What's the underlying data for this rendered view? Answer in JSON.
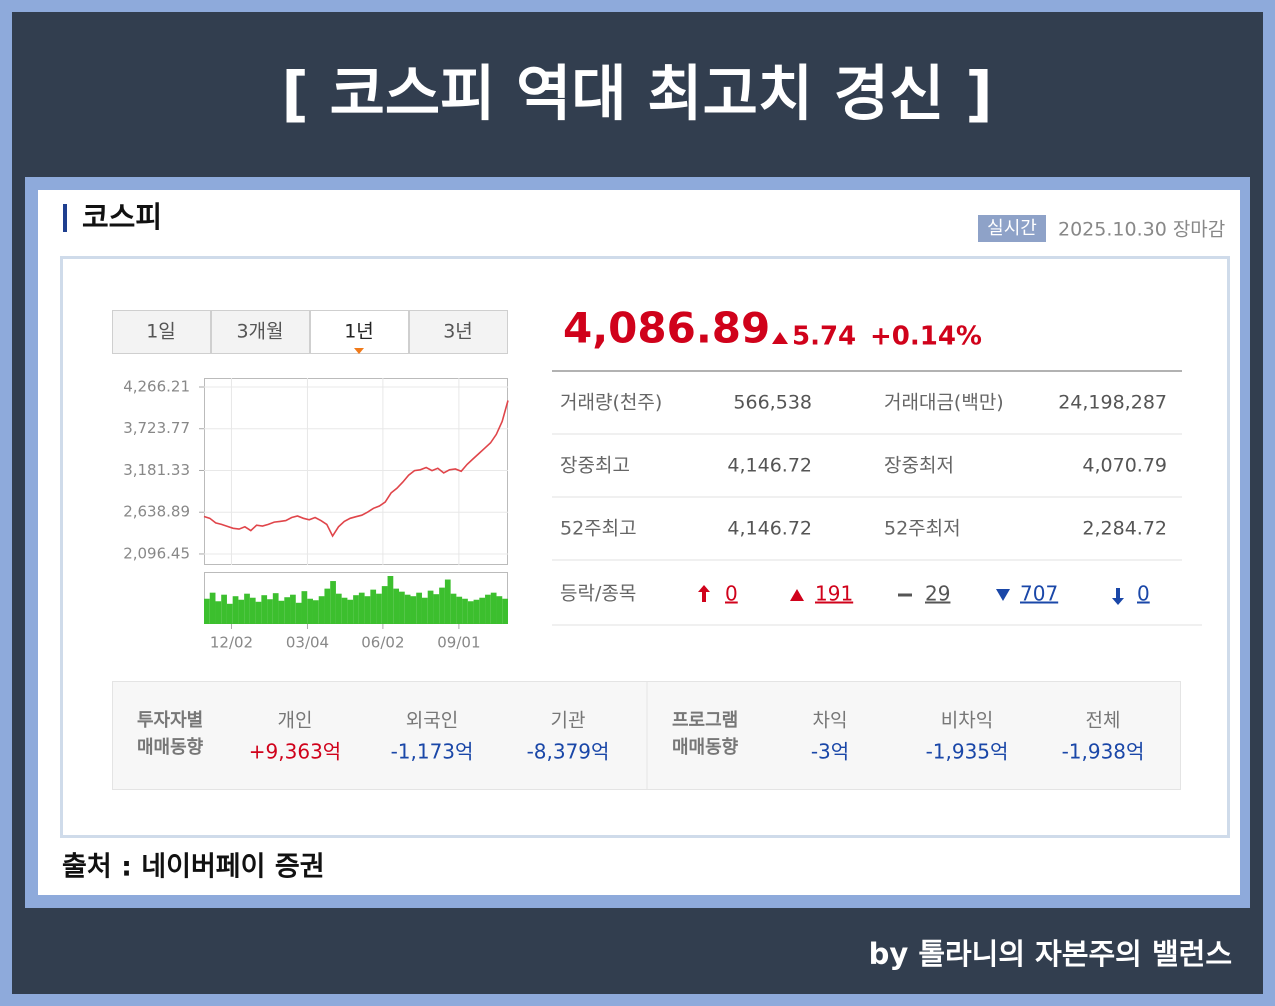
{
  "header": {
    "title": "[ 코스피 역대 최고치 경신 ]"
  },
  "panel": {
    "name": "코스피",
    "badge": "실시간",
    "datetime": "2025.10.30 장마감"
  },
  "tabs": [
    "1일",
    "3개월",
    "1년",
    "3년"
  ],
  "selected_tab": "1년",
  "chart_data": {
    "type": "line",
    "color": "#e0454a",
    "values": [
      2583,
      2560,
      2500,
      2480,
      2455,
      2430,
      2420,
      2450,
      2400,
      2470,
      2460,
      2480,
      2510,
      2520,
      2530,
      2570,
      2590,
      2560,
      2540,
      2570,
      2530,
      2480,
      2330,
      2450,
      2520,
      2560,
      2580,
      2600,
      2640,
      2690,
      2720,
      2770,
      2890,
      2950,
      3030,
      3120,
      3180,
      3190,
      3220,
      3180,
      3210,
      3150,
      3190,
      3200,
      3170,
      3260,
      3330,
      3400,
      3470,
      3540,
      3650,
      3820,
      4090
    ],
    "xlim": [
      0,
      52
    ],
    "xticks": [
      {
        "value": 4.7,
        "label": "12/02"
      },
      {
        "value": 17.7,
        "label": "03/04"
      },
      {
        "value": 30.6,
        "label": "06/02"
      },
      {
        "value": 43.6,
        "label": "09/01"
      }
    ],
    "ylim": [
      1953,
      4383
    ],
    "yticks": [
      {
        "value": 4266.21,
        "label": "4,266.21"
      },
      {
        "value": 3723.77,
        "label": "3,723.77"
      },
      {
        "value": 3181.33,
        "label": "3,181.33"
      },
      {
        "value": 2638.89,
        "label": "2,638.89"
      },
      {
        "value": 2096.45,
        "label": "2,096.45"
      }
    ],
    "grid": true,
    "volume": [
      50,
      62,
      45,
      58,
      40,
      55,
      48,
      60,
      52,
      44,
      57,
      49,
      61,
      46,
      53,
      58,
      42,
      65,
      50,
      47,
      55,
      70,
      85,
      60,
      52,
      48,
      57,
      62,
      55,
      68,
      60,
      75,
      95,
      70,
      64,
      58,
      55,
      62,
      52,
      66,
      59,
      72,
      88,
      60,
      54,
      50,
      45,
      48,
      52,
      58,
      62,
      55,
      50
    ],
    "volume_color": "#3cbf2e"
  },
  "quote": {
    "price": "4,086.89",
    "change": "5.74",
    "change_pct": "+0.14%"
  },
  "stats": [
    [
      "거래량(천주)",
      "566,538",
      "거래대금(백만)",
      "24,198,287"
    ],
    [
      "장중최고",
      "4,146.72",
      "장중최저",
      "4,070.79"
    ],
    [
      "52주최고",
      "4,146.72",
      "52주최저",
      "2,284.72"
    ]
  ],
  "breadth": {
    "label": "등락/종목",
    "items": [
      "0",
      "191",
      "29",
      "707",
      "0"
    ]
  },
  "investors": [
    {
      "label": [
        "투자자별",
        "매매동향"
      ],
      "items": [
        {
          "name": "개인",
          "value": "+9,363억",
          "color": "#d0021b"
        },
        {
          "name": "외국인",
          "value": "-1,173억",
          "color": "#1a47a8"
        },
        {
          "name": "기관",
          "value": "-8,379억",
          "color": "#1a47a8"
        }
      ]
    },
    {
      "label": [
        "프로그램",
        "매매동향"
      ],
      "items": [
        {
          "name": "차익",
          "value": "-3억",
          "color": "#1a47a8"
        },
        {
          "name": "비차익",
          "value": "-1,935억",
          "color": "#1a47a8"
        },
        {
          "name": "전체",
          "value": "-1,938억",
          "color": "#1a47a8"
        }
      ]
    }
  ],
  "source": "출처 : 네이버페이 증권",
  "footer": "by 톨라니의 자본주의 밸런스"
}
